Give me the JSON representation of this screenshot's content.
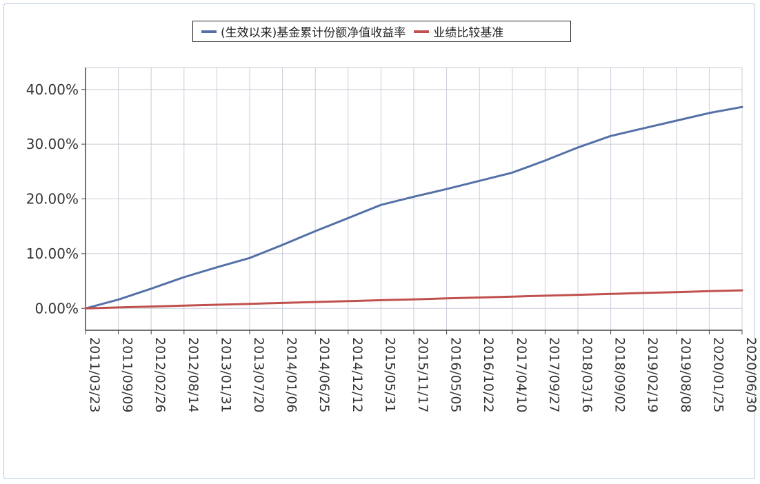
{
  "chart_data": {
    "type": "line",
    "x": [
      "2011/03/23",
      "2011/09/09",
      "2012/02/26",
      "2012/08/14",
      "2013/01/31",
      "2013/07/20",
      "2014/01/06",
      "2014/06/25",
      "2014/12/12",
      "2015/05/31",
      "2015/11/17",
      "2016/05/05",
      "2016/10/22",
      "2017/04/10",
      "2017/09/27",
      "2018/03/16",
      "2018/09/02",
      "2019/02/19",
      "2019/08/08",
      "2020/01/25",
      "2020/06/30"
    ],
    "series": [
      {
        "name": "(生效以来)基金累计份额净值收益率",
        "color": "#5470a6",
        "values": [
          0.0,
          1.6,
          3.6,
          5.7,
          7.5,
          9.2,
          11.6,
          14.1,
          16.5,
          18.9,
          20.4,
          21.8,
          23.3,
          24.8,
          27.0,
          29.4,
          31.5,
          32.9,
          34.3,
          35.7,
          36.8
        ]
      },
      {
        "name": "业绩比较基准",
        "color": "#c0504d",
        "values": [
          0.0,
          0.17,
          0.33,
          0.5,
          0.66,
          0.83,
          0.99,
          1.16,
          1.32,
          1.49,
          1.65,
          1.82,
          1.98,
          2.15,
          2.31,
          2.48,
          2.64,
          2.81,
          2.97,
          3.14,
          3.3
        ]
      }
    ],
    "yticks": [
      0,
      10,
      20,
      30,
      40
    ],
    "ytick_labels": [
      "0.00%",
      "10.00%",
      "20.00%",
      "30.00%",
      "40.00%"
    ],
    "ylim": [
      -4,
      44
    ],
    "grid": true,
    "legend": "top-center",
    "title": "",
    "xlabel": "",
    "ylabel": ""
  }
}
